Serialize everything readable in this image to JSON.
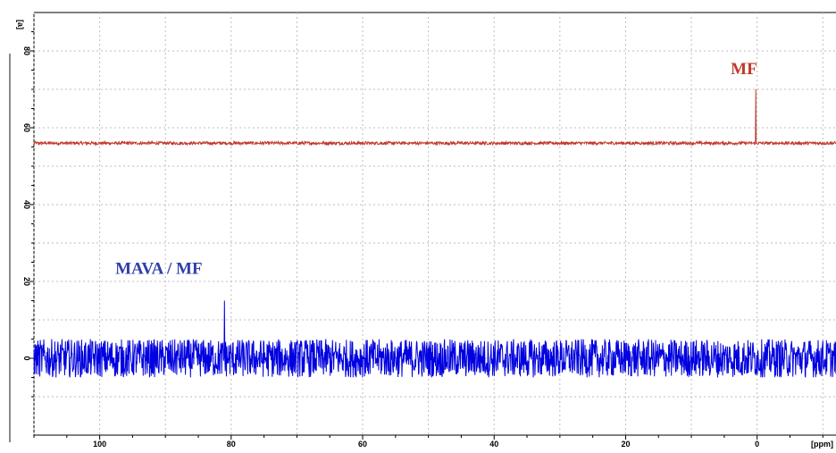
{
  "chart_data": {
    "type": "line",
    "title": "",
    "xlabel": "[ppm]",
    "ylabel": "[a]",
    "xlim": [
      110,
      -12
    ],
    "ylim": [
      -20,
      90
    ],
    "x_reversed": true,
    "grid": true,
    "x_ticks": [
      100,
      80,
      60,
      40,
      20,
      0
    ],
    "y_ticks": [
      0,
      20,
      40,
      60,
      80
    ],
    "series": [
      {
        "name": "MF",
        "color": "#c0392b",
        "baseline": 56,
        "noise_amplitude": 0.4,
        "peaks": [
          {
            "x": 0.2,
            "y": 70
          }
        ]
      },
      {
        "name": "MAVA / MF",
        "color": "#0000e0",
        "baseline": 0,
        "noise_amplitude": 5,
        "peaks": [
          {
            "x": 81,
            "y": 15
          }
        ]
      }
    ],
    "annotations": [
      {
        "text": "MF",
        "color": "#c0392b",
        "x": 2,
        "y": 74
      },
      {
        "text": "MAVA / MF",
        "color": "#2e3fa8",
        "x": 91,
        "y": 22
      }
    ]
  }
}
